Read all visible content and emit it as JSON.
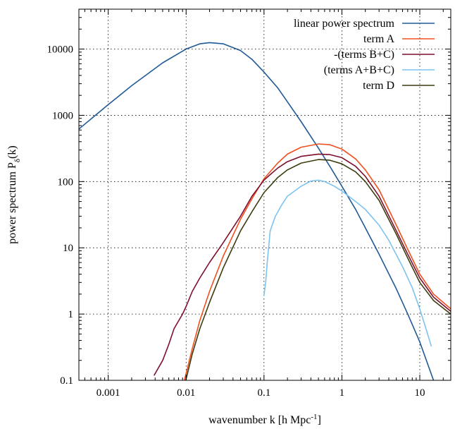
{
  "chart_data": {
    "type": "line",
    "xlabel": "wavenumber k [h Mpc",
    "xlabel_sup": "-1",
    "xlabel_end": "]",
    "ylabel": "power spectrum P",
    "ylabel_sub": "δ",
    "ylabel_end": "(k)",
    "xscale": "log",
    "yscale": "log",
    "xlim": [
      0.00042,
      25
    ],
    "ylim": [
      0.1,
      40000
    ],
    "grid": true,
    "legend_position": "top-right",
    "x_ticks": [
      {
        "value": 0.001,
        "label": "0.001"
      },
      {
        "value": 0.01,
        "label": "0.01"
      },
      {
        "value": 0.1,
        "label": "0.1"
      },
      {
        "value": 1,
        "label": "1"
      },
      {
        "value": 10,
        "label": "10"
      }
    ],
    "y_ticks": [
      {
        "value": 0.1,
        "label": "0.1"
      },
      {
        "value": 1,
        "label": "1"
      },
      {
        "value": 10,
        "label": "10"
      },
      {
        "value": 100,
        "label": "100"
      },
      {
        "value": 1000,
        "label": "1000"
      },
      {
        "value": 10000,
        "label": "10000"
      }
    ],
    "series": [
      {
        "name": "linear power spectrum",
        "color": "#1f5a96",
        "x": [
          0.00042,
          0.001,
          0.002,
          0.005,
          0.01,
          0.015,
          0.02,
          0.03,
          0.05,
          0.07,
          0.1,
          0.15,
          0.2,
          0.3,
          0.5,
          0.7,
          1,
          1.5,
          2,
          3,
          5,
          7,
          10,
          15
        ],
        "y": [
          620,
          1450,
          2800,
          6200,
          10000,
          12000,
          12500,
          12000,
          9500,
          7000,
          4500,
          2600,
          1600,
          800,
          320,
          170,
          85,
          38,
          20,
          8,
          2.4,
          1.0,
          0.38,
          0.1
        ]
      },
      {
        "name": "term A",
        "color": "#f0501e",
        "x": [
          0.0095,
          0.012,
          0.015,
          0.02,
          0.03,
          0.05,
          0.07,
          0.1,
          0.15,
          0.2,
          0.3,
          0.5,
          0.7,
          1,
          1.5,
          2,
          3,
          5,
          7,
          10,
          15,
          25
        ],
        "y": [
          0.1,
          0.3,
          0.8,
          2.2,
          7.5,
          27,
          55,
          110,
          190,
          260,
          330,
          370,
          360,
          310,
          220,
          150,
          75,
          22,
          9.5,
          4,
          2,
          1.2
        ]
      },
      {
        "name": "-(terms B+C)",
        "color": "#7d0f2d",
        "x": [
          0.0039,
          0.005,
          0.006,
          0.007,
          0.009,
          0.01,
          0.012,
          0.015,
          0.02,
          0.03,
          0.05,
          0.07,
          0.1,
          0.15,
          0.2,
          0.3,
          0.5,
          0.7,
          1,
          1.5,
          2,
          3,
          5,
          7,
          10,
          15,
          25
        ],
        "y": [
          0.12,
          0.2,
          0.35,
          0.6,
          1.0,
          1.3,
          2.2,
          3.5,
          6,
          12,
          30,
          60,
          105,
          160,
          200,
          240,
          260,
          255,
          230,
          170,
          120,
          60,
          18,
          8,
          3.5,
          1.8,
          1.1
        ]
      },
      {
        "name": "(terms A+B+C)",
        "color": "#7dc3f0",
        "x": [
          0.1,
          0.105,
          0.11,
          0.12,
          0.14,
          0.17,
          0.2,
          0.3,
          0.4,
          0.5,
          0.6,
          0.8,
          1,
          1.5,
          2,
          3,
          4,
          6,
          8,
          10,
          12,
          14
        ],
        "y": [
          1.9,
          3,
          6,
          18,
          30,
          45,
          60,
          85,
          102,
          105,
          100,
          85,
          72,
          50,
          38,
          22,
          13,
          5.2,
          2.5,
          1.2,
          0.6,
          0.33
        ]
      },
      {
        "name": "term D",
        "color": "#3c3c0f",
        "x": [
          0.0099,
          0.012,
          0.015,
          0.02,
          0.03,
          0.05,
          0.07,
          0.1,
          0.15,
          0.2,
          0.3,
          0.5,
          0.7,
          1,
          1.5,
          2,
          3,
          5,
          7,
          10,
          15,
          25
        ],
        "y": [
          0.1,
          0.25,
          0.6,
          1.5,
          5,
          18,
          35,
          68,
          115,
          150,
          190,
          215,
          210,
          185,
          140,
          100,
          52,
          16,
          7,
          3.0,
          1.6,
          1.0
        ]
      }
    ]
  }
}
